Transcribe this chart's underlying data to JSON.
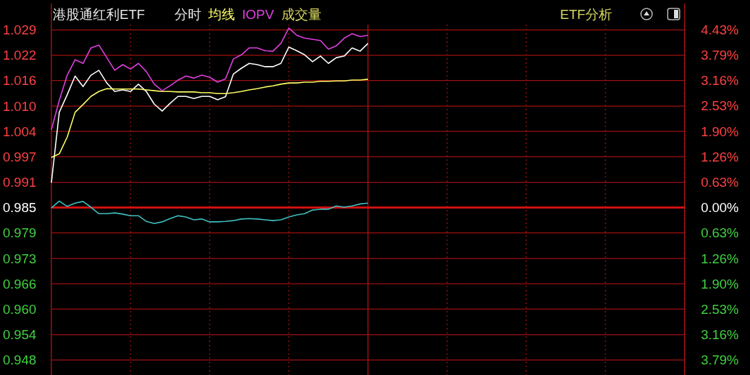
{
  "chart_data": {
    "type": "line",
    "title": "港股通红利ETF",
    "subtitle": "分时",
    "annotations": [
      "成交量",
      "ETF分析"
    ],
    "categories": [
      null,
      null,
      null,
      null,
      null,
      null,
      null,
      null,
      null,
      null,
      null,
      null,
      null,
      null,
      null,
      null,
      null,
      null,
      null,
      null,
      null,
      null,
      null,
      null,
      null,
      null,
      null,
      null,
      null,
      null,
      null,
      null,
      null,
      null,
      null,
      null,
      null,
      null,
      null,
      null,
      null,
      null,
      null,
      null,
      null,
      null,
      null,
      null,
      null,
      null,
      null,
      null,
      null,
      null,
      null,
      null,
      null,
      null,
      null,
      null,
      null,
      null,
      null,
      null,
      null,
      null,
      null,
      null,
      null,
      null,
      null,
      null,
      null,
      null,
      null,
      null,
      null,
      null,
      null,
      null,
      null
    ],
    "series": [
      {
        "color": "#ffffff",
        "values": [
          0.9911,
          1.0084,
          1.0127,
          1.0173,
          1.0147,
          1.0175,
          1.0187,
          1.0156,
          1.0135,
          1.0139,
          1.0135,
          1.0153,
          1.0135,
          1.0104,
          1.0087,
          1.0106,
          1.0123,
          1.0123,
          1.0118,
          1.0123,
          1.0123,
          1.0115,
          1.0122,
          1.0178,
          1.0192,
          1.0204,
          1.0201,
          1.0196,
          1.0196,
          1.0204,
          1.0244,
          1.0235,
          1.0225,
          1.0208,
          1.0222,
          1.0204,
          1.0218,
          1.0222,
          1.0242,
          1.0234,
          1.0253,
          null,
          null,
          null,
          null,
          null,
          null,
          null,
          null,
          null,
          null,
          null,
          null,
          null,
          null,
          null,
          null,
          null,
          null,
          null,
          null,
          null,
          null,
          null,
          null,
          null,
          null,
          null,
          null,
          null,
          null,
          null,
          null,
          null,
          null,
          null,
          null,
          null,
          null,
          null,
          null
        ]
      },
      {
        "name": "均线",
        "color": "#ffff66",
        "values": [
          0.9973,
          0.9982,
          1.0023,
          1.0084,
          1.0103,
          1.0123,
          1.0135,
          1.0142,
          1.0141,
          1.0141,
          1.0141,
          1.0141,
          1.0139,
          1.0137,
          1.0135,
          1.0135,
          1.0134,
          1.0134,
          1.0134,
          1.0132,
          1.0132,
          1.013,
          1.013,
          1.0132,
          1.0135,
          1.0139,
          1.0142,
          1.0146,
          1.0149,
          1.0153,
          1.0156,
          1.0156,
          1.0158,
          1.0158,
          1.016,
          1.016,
          1.0161,
          1.0161,
          1.0163,
          1.0163,
          1.0165,
          null,
          null,
          null,
          null,
          null,
          null,
          null,
          null,
          null,
          null,
          null,
          null,
          null,
          null,
          null,
          null,
          null,
          null,
          null,
          null,
          null,
          null,
          null,
          null,
          null,
          null,
          null,
          null,
          null,
          null,
          null,
          null,
          null,
          null,
          null,
          null,
          null,
          null,
          null,
          null
        ]
      },
      {
        "name": "IOPV",
        "color": "#e040e0",
        "values": [
          1.0041,
          1.0113,
          1.0175,
          1.0213,
          1.0204,
          1.0242,
          1.0249,
          1.0218,
          1.0187,
          1.0201,
          1.019,
          1.0204,
          1.0184,
          1.0153,
          1.0137,
          1.0149,
          1.0163,
          1.0173,
          1.0168,
          1.0175,
          1.017,
          1.0158,
          1.0166,
          1.0215,
          1.0225,
          1.0242,
          1.0242,
          1.0235,
          1.0234,
          1.0253,
          1.0291,
          1.0273,
          1.0266,
          1.0263,
          1.026,
          1.0239,
          1.0247,
          1.0266,
          1.0277,
          1.027,
          1.0273,
          null,
          null,
          null,
          null,
          null,
          null,
          null,
          null,
          null,
          null,
          null,
          null,
          null,
          null,
          null,
          null,
          null,
          null,
          null,
          null,
          null,
          null,
          null,
          null,
          null,
          null,
          null,
          null,
          null,
          null,
          null,
          null,
          null,
          null,
          null,
          null,
          null,
          null,
          null,
          null
        ]
      },
      {
        "color": "#40c0c0",
        "values": [
          0.9849,
          0.9866,
          0.9853,
          0.9861,
          0.9865,
          0.9851,
          0.9835,
          0.9835,
          0.9837,
          0.9834,
          0.983,
          0.983,
          0.9816,
          0.9811,
          0.9815,
          0.9823,
          0.983,
          0.9827,
          0.982,
          0.9822,
          0.9815,
          0.9815,
          0.9816,
          0.9818,
          0.9822,
          0.9823,
          0.9822,
          0.982,
          0.9818,
          0.982,
          0.9827,
          0.9832,
          0.9835,
          0.9844,
          0.9846,
          0.9846,
          0.9854,
          0.9851,
          0.9854,
          0.9859,
          0.9861,
          null,
          null,
          null,
          null,
          null,
          null,
          null,
          null,
          null,
          null,
          null,
          null,
          null,
          null,
          null,
          null,
          null,
          null,
          null,
          null,
          null,
          null,
          null,
          null,
          null,
          null,
          null,
          null,
          null,
          null,
          null,
          null,
          null,
          null,
          null,
          null,
          null,
          null,
          null,
          null
        ]
      }
    ],
    "ylim": [
      0.9439,
      1.0351
    ],
    "yticks": [
      {
        "value": 1.0286,
        "label": "1.029"
      },
      {
        "value": 1.0224,
        "label": "1.022"
      },
      {
        "value": 1.0162,
        "label": "1.016"
      },
      {
        "value": 1.0099,
        "label": "1.010"
      },
      {
        "value": 1.0037,
        "label": "1.004"
      },
      {
        "value": 0.9975,
        "label": "0.997"
      },
      {
        "value": 0.9912,
        "label": "0.991"
      },
      0.985,
      {
        "value": 0.9788,
        "label": "0.979"
      },
      {
        "value": 0.9725,
        "label": "0.973"
      },
      {
        "value": 0.9663,
        "label": "0.966"
      },
      {
        "value": 0.9601,
        "label": "0.960"
      },
      {
        "value": 0.9538,
        "label": "0.954"
      },
      {
        "value": 0.9476,
        "label": "0.948"
      }
    ],
    "y2lim": [
      -4.17,
      5.08
    ],
    "y2ticks": [
      {
        "value": 4.429,
        "label": "4.43%"
      },
      {
        "value": 3.794,
        "label": "3.79%"
      },
      {
        "value": 3.164,
        "label": "3.16%"
      },
      {
        "value": 2.531,
        "label": "2.53%"
      },
      {
        "value": 1.898,
        "label": "1.90%"
      },
      {
        "value": 1.265,
        "label": "1.26%"
      },
      {
        "value": 0.633,
        "label": "0.63%"
      },
      {
        "value": 0,
        "label": "0.00%"
      },
      {
        "value": -0.633,
        "label": "0.63%"
      },
      {
        "value": -1.265,
        "label": "1.26%"
      },
      {
        "value": -1.898,
        "label": "1.90%"
      },
      {
        "value": -2.531,
        "label": "2.53%"
      },
      {
        "value": -3.164,
        "label": "3.16%"
      },
      {
        "value": -3.794,
        "label": "3.79%"
      }
    ],
    "ref_lines": [
      {
        "axis": "y",
        "value": 0.985,
        "color": "#d01010"
      }
    ],
    "grid": true,
    "legend": "top left",
    "marker": "none",
    "line_style": "solid"
  }
}
